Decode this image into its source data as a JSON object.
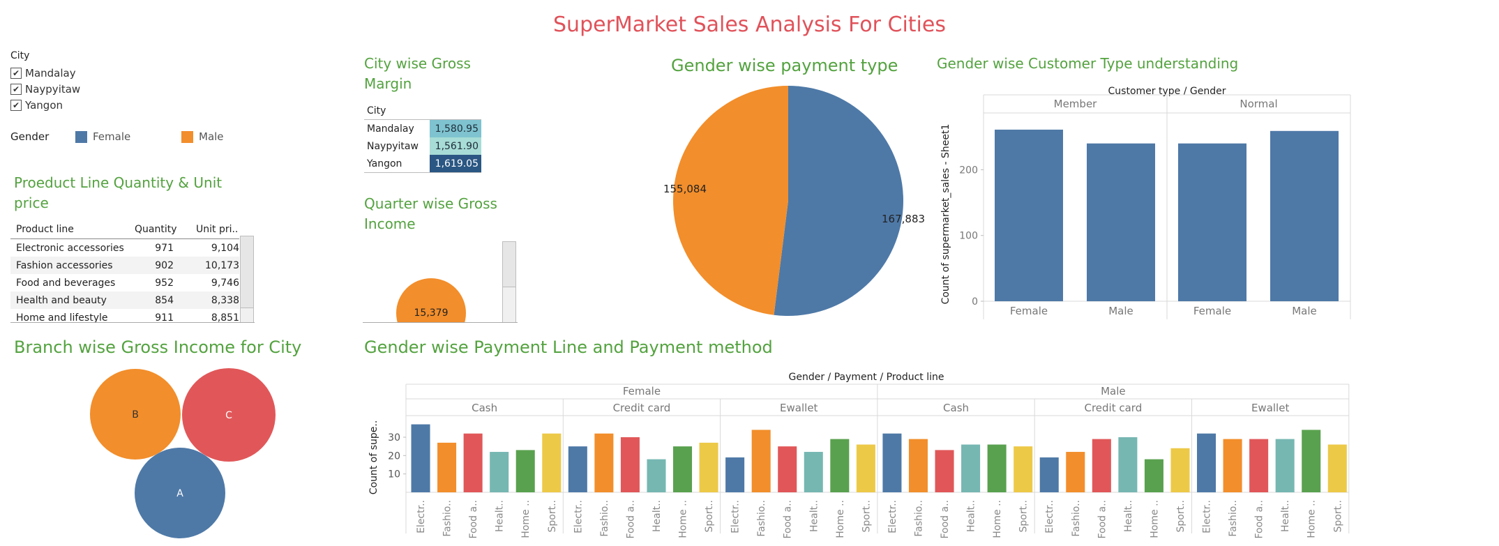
{
  "title": "SuperMarket Sales Analysis  For Cities",
  "filters": {
    "city_label": "City",
    "cities": [
      {
        "label": "Mandalay",
        "checked": true
      },
      {
        "label": "Naypyitaw",
        "checked": true
      },
      {
        "label": "Yangon",
        "checked": true
      }
    ],
    "gender_label": "Gender",
    "gender_legend": [
      {
        "label": "Female",
        "color": "#4e79a7"
      },
      {
        "label": "Male",
        "color": "#f28e2b"
      }
    ]
  },
  "product_table": {
    "title": "Proeduct Line Quantity & Unit price",
    "headers": [
      "Product line",
      "Quantity",
      "Unit pri.."
    ],
    "rows": [
      [
        "Electronic accessories",
        "971",
        "9,104"
      ],
      [
        "Fashion accessories",
        "902",
        "10,173"
      ],
      [
        "Food and beverages",
        "952",
        "9,746"
      ],
      [
        "Health and beauty",
        "854",
        "8,338"
      ],
      [
        "Home and lifestyle",
        "911",
        "8,851"
      ]
    ]
  },
  "gross_margin": {
    "title": "City wise Gross Margin",
    "header": "City",
    "rows": [
      {
        "city": "Mandalay",
        "value": "1,580.95",
        "color": "#7ec3cf",
        "text_color": "#1f2d3a"
      },
      {
        "city": "Naypyitaw",
        "value": "1,561.90",
        "color": "#a7ddd6",
        "text_color": "#1f2d3a"
      },
      {
        "city": "Yangon",
        "value": "1,619.05",
        "color": "#2a5783",
        "text_color": "#ffffff"
      }
    ]
  },
  "quarter_income": {
    "title": "Quarter wise Gross Income",
    "bubble_label": "15,379",
    "bubble_color": "#f28e2b"
  },
  "branch_income": {
    "title": "Branch wise Gross Income for City",
    "bubbles": [
      {
        "label": "B",
        "color": "#f28e2b"
      },
      {
        "label": "C",
        "color": "#e15759"
      },
      {
        "label": "A",
        "color": "#4e79a7"
      }
    ]
  },
  "payment_pie": {
    "title": "Gender wise payment type",
    "chart_data": {
      "type": "pie",
      "slices": [
        {
          "label": "167,883",
          "value": 167883,
          "color": "#4e79a7"
        },
        {
          "label": "155,084",
          "value": 155084,
          "color": "#f28e2b"
        }
      ]
    }
  },
  "customer_type": {
    "title": "Gender wise Customer Type understanding",
    "chart_data": {
      "type": "bar",
      "title": "Customer type  /  Gender",
      "ylabel": "Count of supermarket_sales - Sheet1",
      "groups": [
        "Member",
        "Normal"
      ],
      "categories": [
        "Female",
        "Male"
      ],
      "values": [
        [
          261,
          240
        ],
        [
          240,
          259
        ]
      ],
      "ylim": [
        0,
        280
      ],
      "yticks": [
        0,
        100,
        200
      ],
      "color": "#4e79a7"
    }
  },
  "payment_line": {
    "title": "Gender wise Payment Line and Payment method",
    "chart_data": {
      "type": "bar",
      "title": "Gender  /  Payment  /  Product line",
      "ylabel": "Count of supe..",
      "genders": [
        "Female",
        "Male"
      ],
      "payments": [
        "Cash",
        "Credit card",
        "Ewallet"
      ],
      "categories": [
        "Electr..",
        "Fashio..",
        "Food a..",
        "Healt..",
        "Home ..",
        "Sport.."
      ],
      "colors": [
        "#4e79a7",
        "#f28e2b",
        "#e15759",
        "#76b7b2",
        "#59a14f",
        "#edc948"
      ],
      "values": [
        [
          [
            37,
            27,
            32,
            22,
            23,
            32
          ],
          [
            25,
            32,
            30,
            18,
            25,
            27
          ],
          [
            19,
            34,
            25,
            22,
            29,
            26
          ]
        ],
        [
          [
            32,
            29,
            23,
            26,
            26,
            25
          ],
          [
            19,
            22,
            29,
            30,
            18,
            24
          ],
          [
            32,
            29,
            29,
            29,
            34,
            26
          ]
        ]
      ],
      "ylim": [
        0,
        41
      ],
      "yticks": [
        10,
        20,
        30
      ]
    }
  }
}
